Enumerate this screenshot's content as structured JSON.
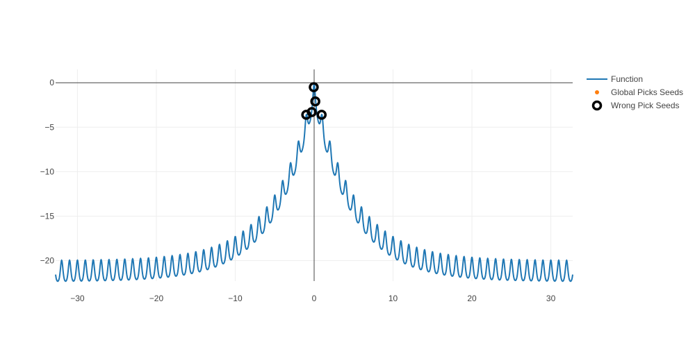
{
  "chart_data": {
    "type": "line",
    "title": "",
    "xlabel": "",
    "ylabel": "",
    "xlim": [
      -32.768,
      32.768
    ],
    "ylim": [
      -22.3,
      1.5
    ],
    "xticks": [
      -30,
      -20,
      -10,
      0,
      10,
      20,
      30
    ],
    "xtick_labels": [
      "−30",
      "−20",
      "−10",
      "0",
      "10",
      "20",
      "30"
    ],
    "yticks": [
      0,
      -5,
      -10,
      -15,
      -20
    ],
    "ytick_labels": [
      "0",
      "−5",
      "−10",
      "−15",
      "−20"
    ],
    "grid": true,
    "zero_lines": true,
    "legend_position": "right",
    "series": [
      {
        "name": "Function",
        "kind": "line",
        "color": "#1f77b4",
        "function": "negative Ackley: -(20*(1-exp(-0.2*|x|)) + e - exp(cos(2*pi*x)))",
        "x_range": [
          -32.768,
          32.768
        ]
      },
      {
        "name": "Global Picks Seeds",
        "kind": "markers",
        "color": "#ff7f0e",
        "points": []
      },
      {
        "name": "Wrong Pick Seeds",
        "kind": "markers",
        "color": "#000000",
        "marker": "open-circle",
        "points": [
          {
            "x": -0.05,
            "y": -0.5
          },
          {
            "x": 0.15,
            "y": -2.1
          },
          {
            "x": -0.3,
            "y": -3.3
          },
          {
            "x": -1.0,
            "y": -3.6
          },
          {
            "x": 0.95,
            "y": -3.6
          }
        ]
      }
    ],
    "legend": {
      "items": [
        {
          "label": "Function",
          "symbol": "line",
          "color": "#1f77b4"
        },
        {
          "label": "Global Picks Seeds",
          "symbol": "dot",
          "color": "#ff7f0e"
        },
        {
          "label": "Wrong Pick Seeds",
          "symbol": "open-circle",
          "color": "#000000"
        }
      ]
    }
  }
}
